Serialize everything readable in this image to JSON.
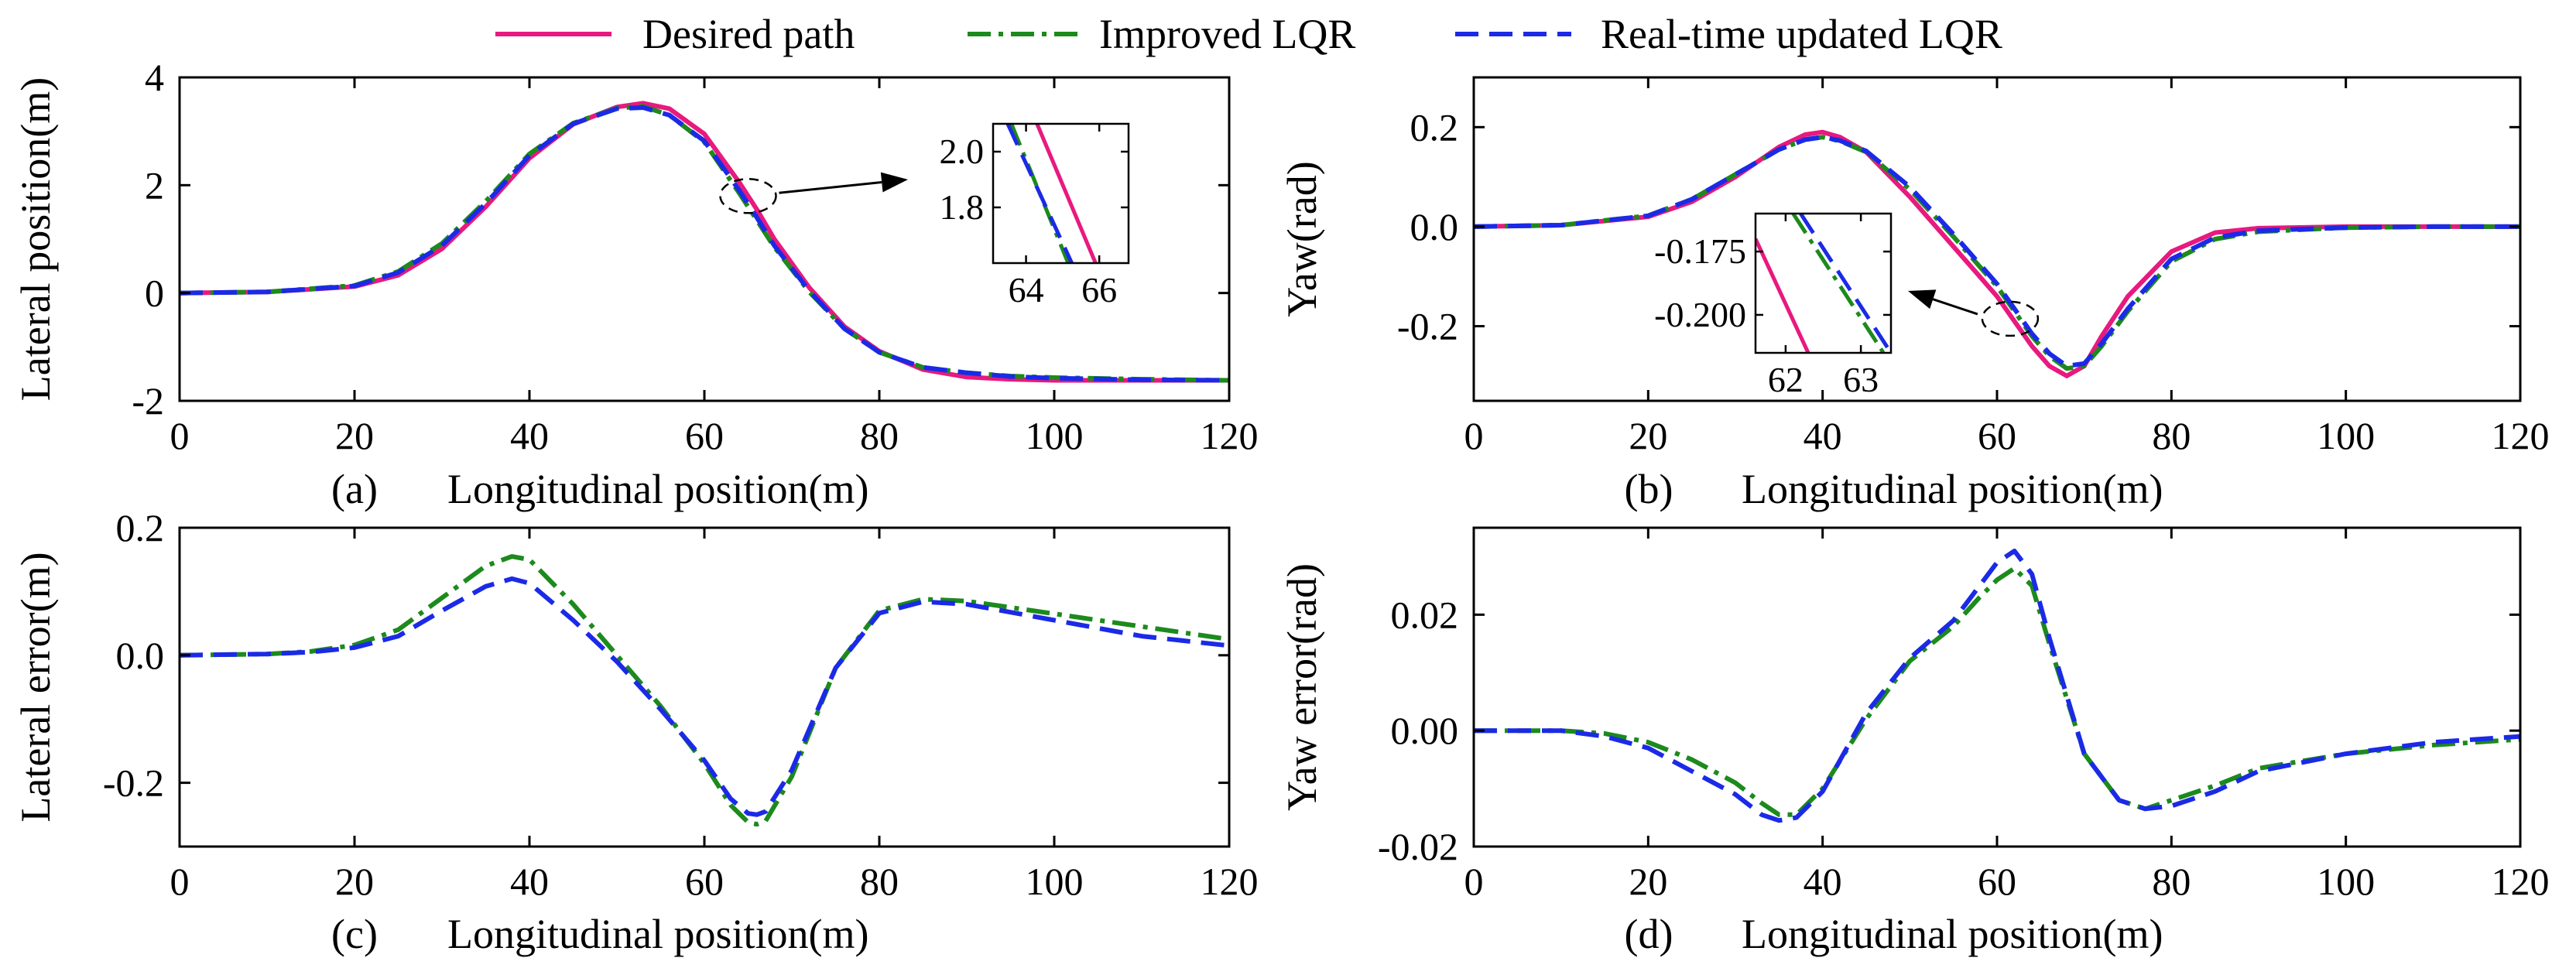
{
  "legend": [
    {
      "label": "Desired path",
      "color": "#e8197f",
      "dash": "solid"
    },
    {
      "label": "Improved LQR",
      "color": "#1c8a1c",
      "dash": "dashdot"
    },
    {
      "label": "Real-time updated LQR",
      "color": "#1b2ae6",
      "dash": "dashed"
    }
  ],
  "chart_data": [
    {
      "id": "a",
      "type": "line",
      "caption": "(a)",
      "xlabel": "Longitudinal position(m)",
      "ylabel": "Lateral position(m)",
      "xlim": [
        0,
        120
      ],
      "ylim": [
        -2,
        4
      ],
      "xticks": [
        0,
        20,
        40,
        60,
        80,
        100,
        120
      ],
      "xtick_labels": [
        "0",
        "20",
        "40",
        "60",
        "80",
        "100",
        "120"
      ],
      "yticks": [
        -2,
        0,
        2,
        4
      ],
      "ytick_labels": [
        "-2",
        "0",
        "2",
        "4"
      ],
      "series": [
        {
          "name": "Desired path",
          "x": [
            0,
            10,
            20,
            25,
            30,
            35,
            40,
            45,
            50,
            53,
            56,
            60,
            64,
            66,
            68,
            72,
            76,
            80,
            85,
            90,
            95,
            100,
            110,
            120
          ],
          "y": [
            0,
            0.02,
            0.12,
            0.33,
            0.82,
            1.6,
            2.5,
            3.13,
            3.45,
            3.52,
            3.42,
            2.95,
            2.05,
            1.55,
            1.0,
            0.1,
            -0.62,
            -1.08,
            -1.42,
            -1.56,
            -1.6,
            -1.62,
            -1.62,
            -1.62
          ]
        },
        {
          "name": "Improved LQR",
          "x": [
            0,
            10,
            20,
            25,
            30,
            35,
            40,
            45,
            50,
            53,
            56,
            60,
            64,
            66,
            68,
            72,
            76,
            80,
            85,
            90,
            95,
            100,
            110,
            120
          ],
          "y": [
            0,
            0.02,
            0.14,
            0.4,
            0.92,
            1.7,
            2.58,
            3.15,
            3.43,
            3.46,
            3.3,
            2.8,
            1.85,
            1.35,
            0.85,
            0.02,
            -0.66,
            -1.1,
            -1.38,
            -1.48,
            -1.54,
            -1.57,
            -1.6,
            -1.62
          ]
        },
        {
          "name": "Real-time updated LQR",
          "x": [
            0,
            10,
            20,
            25,
            30,
            35,
            40,
            45,
            50,
            53,
            56,
            60,
            64,
            66,
            68,
            72,
            76,
            80,
            85,
            90,
            95,
            100,
            110,
            120
          ],
          "y": [
            0,
            0.02,
            0.13,
            0.38,
            0.88,
            1.66,
            2.55,
            3.14,
            3.42,
            3.44,
            3.3,
            2.82,
            1.9,
            1.4,
            0.88,
            0.04,
            -0.66,
            -1.1,
            -1.38,
            -1.48,
            -1.55,
            -1.58,
            -1.61,
            -1.62
          ]
        }
      ],
      "annotation": {
        "target": [
          65,
          1.8
        ]
      },
      "inset": {
        "xlim": [
          63.1,
          66.8
        ],
        "ylim": [
          1.6,
          2.1
        ],
        "xticks": [
          64,
          66
        ],
        "xtick_labels": [
          "64",
          "66"
        ],
        "yticks": [
          1.8,
          2.0
        ],
        "ytick_labels": [
          "1.8",
          "2.0"
        ],
        "series": [
          {
            "name": "Desired path",
            "x": [
              64.3,
              65.9
            ],
            "y": [
              2.1,
              1.6
            ]
          },
          {
            "name": "Improved LQR",
            "x": [
              63.6,
              65.15
            ],
            "y": [
              2.1,
              1.6
            ]
          },
          {
            "name": "Real-time updated LQR",
            "x": [
              63.5,
              65.25
            ],
            "y": [
              2.1,
              1.6
            ]
          }
        ]
      }
    },
    {
      "id": "b",
      "type": "line",
      "caption": "(b)",
      "xlabel": "Longitudinal position(m)",
      "ylabel": "Yaw(rad)",
      "xlim": [
        0,
        120
      ],
      "ylim": [
        -0.35,
        0.3
      ],
      "xticks": [
        0,
        20,
        40,
        60,
        80,
        100,
        120
      ],
      "xtick_labels": [
        "0",
        "20",
        "40",
        "60",
        "80",
        "100",
        "120"
      ],
      "yticks": [
        -0.2,
        0.0,
        0.2
      ],
      "ytick_labels": [
        "-0.2",
        "0.0",
        "0.2"
      ],
      "series": [
        {
          "name": "Desired path",
          "x": [
            0,
            10,
            20,
            25,
            30,
            35,
            38,
            40,
            42,
            45,
            50,
            55,
            60,
            62,
            64,
            66,
            68,
            70,
            72,
            75,
            80,
            85,
            90,
            100,
            110,
            120
          ],
          "y": [
            0,
            0.003,
            0.02,
            0.05,
            0.1,
            0.16,
            0.185,
            0.19,
            0.18,
            0.15,
            0.06,
            -0.04,
            -0.14,
            -0.19,
            -0.24,
            -0.28,
            -0.3,
            -0.28,
            -0.22,
            -0.14,
            -0.05,
            -0.012,
            -0.003,
            0,
            0,
            0
          ]
        },
        {
          "name": "Improved LQR",
          "x": [
            0,
            10,
            20,
            25,
            30,
            35,
            38,
            40,
            42,
            45,
            50,
            55,
            60,
            62,
            64,
            66,
            68,
            70,
            72,
            75,
            80,
            85,
            90,
            100,
            110,
            120
          ],
          "y": [
            0,
            0.003,
            0.022,
            0.055,
            0.105,
            0.155,
            0.175,
            0.18,
            0.172,
            0.15,
            0.075,
            -0.02,
            -0.12,
            -0.17,
            -0.22,
            -0.26,
            -0.285,
            -0.28,
            -0.24,
            -0.17,
            -0.07,
            -0.025,
            -0.01,
            -0.002,
            0,
            0
          ]
        },
        {
          "name": "Real-time updated LQR",
          "x": [
            0,
            10,
            20,
            25,
            30,
            35,
            38,
            40,
            42,
            45,
            50,
            55,
            60,
            62,
            64,
            66,
            68,
            70,
            72,
            75,
            80,
            85,
            90,
            100,
            110,
            120
          ],
          "y": [
            0,
            0.003,
            0.022,
            0.055,
            0.105,
            0.155,
            0.175,
            0.18,
            0.173,
            0.152,
            0.08,
            -0.015,
            -0.115,
            -0.165,
            -0.215,
            -0.255,
            -0.28,
            -0.275,
            -0.235,
            -0.165,
            -0.065,
            -0.022,
            -0.008,
            -0.002,
            0,
            0
          ]
        }
      ],
      "annotation": {
        "target": [
          61.5,
          -0.185
        ]
      },
      "inset": {
        "xlim": [
          61.6,
          63.4
        ],
        "ylim": [
          -0.215,
          -0.16
        ],
        "xticks": [
          62,
          63
        ],
        "xtick_labels": [
          "62",
          "63"
        ],
        "yticks": [
          -0.2,
          -0.175
        ],
        "ytick_labels": [
          "-0.200",
          "-0.175"
        ],
        "series": [
          {
            "name": "Desired path",
            "x": [
              61.6,
              62.3
            ],
            "y": [
              -0.17,
              -0.215
            ]
          },
          {
            "name": "Improved LQR",
            "x": [
              62.1,
              63.3
            ],
            "y": [
              -0.16,
              -0.215
            ]
          },
          {
            "name": "Real-time updated LQR",
            "x": [
              62.2,
              63.4
            ],
            "y": [
              -0.16,
              -0.215
            ]
          }
        ]
      }
    },
    {
      "id": "c",
      "type": "line",
      "caption": "(c)",
      "xlabel": "Longitudinal position(m)",
      "ylabel": "Lateral error(m)",
      "xlim": [
        0,
        120
      ],
      "ylim": [
        -0.3,
        0.2
      ],
      "xticks": [
        0,
        20,
        40,
        60,
        80,
        100,
        120
      ],
      "xtick_labels": [
        "0",
        "20",
        "40",
        "60",
        "80",
        "100",
        "120"
      ],
      "yticks": [
        -0.2,
        0.0,
        0.2
      ],
      "ytick_labels": [
        "-0.2",
        "0.0",
        "0.2"
      ],
      "series": [
        {
          "name": "Improved LQR",
          "x": [
            0,
            10,
            15,
            20,
            25,
            30,
            35,
            38,
            40,
            45,
            50,
            55,
            60,
            63,
            65,
            66,
            67,
            70,
            75,
            80,
            85,
            90,
            100,
            110,
            120
          ],
          "y": [
            0,
            0.002,
            0.006,
            0.016,
            0.04,
            0.09,
            0.14,
            0.155,
            0.15,
            0.08,
            0.0,
            -0.08,
            -0.17,
            -0.235,
            -0.262,
            -0.265,
            -0.26,
            -0.19,
            -0.02,
            0.07,
            0.088,
            0.085,
            0.065,
            0.045,
            0.025
          ]
        },
        {
          "name": "Real-time updated LQR",
          "x": [
            0,
            10,
            15,
            20,
            25,
            30,
            35,
            38,
            40,
            45,
            50,
            55,
            60,
            63,
            65,
            66,
            67,
            70,
            75,
            80,
            85,
            90,
            100,
            110,
            120
          ],
          "y": [
            0,
            0.002,
            0.005,
            0.012,
            0.03,
            0.07,
            0.108,
            0.12,
            0.113,
            0.055,
            -0.01,
            -0.085,
            -0.165,
            -0.225,
            -0.248,
            -0.25,
            -0.245,
            -0.18,
            -0.02,
            0.066,
            0.084,
            0.08,
            0.055,
            0.03,
            0.015
          ]
        }
      ]
    },
    {
      "id": "d",
      "type": "line",
      "caption": "(d)",
      "xlabel": "Longitudinal position(m)",
      "ylabel": "Yaw error(rad)",
      "xlim": [
        0,
        120
      ],
      "ylim": [
        -0.02,
        0.035
      ],
      "xticks": [
        0,
        20,
        40,
        60,
        80,
        100,
        120
      ],
      "xtick_labels": [
        "0",
        "20",
        "40",
        "60",
        "80",
        "100",
        "120"
      ],
      "yticks": [
        -0.02,
        0.0,
        0.02
      ],
      "ytick_labels": [
        "-0.02",
        "0.00",
        "0.02"
      ],
      "series": [
        {
          "name": "Improved LQR",
          "x": [
            0,
            10,
            15,
            20,
            25,
            30,
            33,
            35,
            37,
            40,
            45,
            50,
            55,
            58,
            60,
            62,
            64,
            66,
            70,
            74,
            77,
            80,
            85,
            90,
            100,
            110,
            120
          ],
          "y": [
            0,
            0,
            -0.0005,
            -0.002,
            -0.005,
            -0.009,
            -0.0125,
            -0.0145,
            -0.0145,
            -0.01,
            0.002,
            0.012,
            0.018,
            0.023,
            0.026,
            0.028,
            0.025,
            0.015,
            -0.004,
            -0.012,
            -0.0135,
            -0.012,
            -0.0095,
            -0.0065,
            -0.004,
            -0.0025,
            -0.0015
          ]
        },
        {
          "name": "Real-time updated LQR",
          "x": [
            0,
            10,
            15,
            20,
            25,
            30,
            33,
            35,
            37,
            40,
            45,
            50,
            55,
            58,
            60,
            62,
            64,
            66,
            70,
            74,
            77,
            80,
            85,
            90,
            100,
            110,
            120
          ],
          "y": [
            0,
            0,
            -0.001,
            -0.003,
            -0.007,
            -0.011,
            -0.0145,
            -0.0155,
            -0.015,
            -0.0105,
            0.003,
            0.0125,
            0.019,
            0.025,
            0.029,
            0.031,
            0.027,
            0.016,
            -0.004,
            -0.012,
            -0.0135,
            -0.013,
            -0.0105,
            -0.007,
            -0.004,
            -0.002,
            -0.001
          ]
        }
      ]
    }
  ]
}
